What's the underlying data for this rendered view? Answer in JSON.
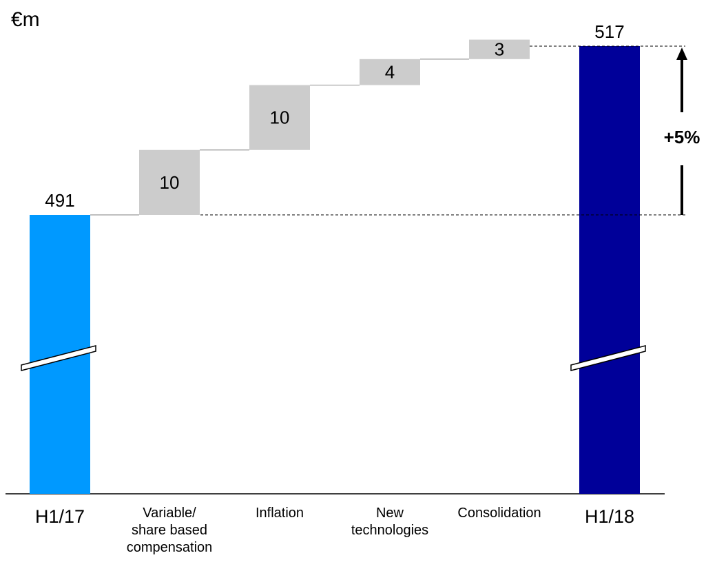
{
  "chart_data": {
    "type": "bar",
    "unit_label": "€m",
    "categories": [
      "H1/17",
      "Variable/\nshare based\ncompensation",
      "Inflation",
      "New\ntechnologies",
      "Consolidation",
      "H1/18"
    ],
    "values": [
      491,
      10,
      10,
      4,
      3,
      517
    ],
    "value_labels": [
      "491",
      "10",
      "10",
      "4",
      "3",
      "517"
    ],
    "kinds": [
      "total",
      "delta",
      "delta",
      "delta",
      "delta",
      "total"
    ],
    "change_label": "+5%",
    "colors": {
      "start_total": "#0099ff",
      "end_total": "#000099",
      "delta": "#cccccc",
      "connector": "#999999"
    }
  }
}
